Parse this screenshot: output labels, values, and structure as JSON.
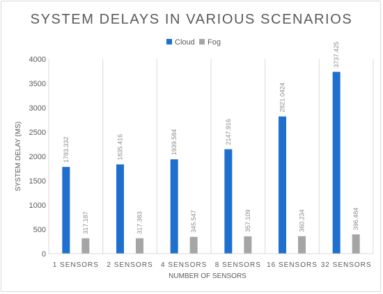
{
  "chart_data": {
    "type": "bar",
    "title": "SYSTEM DELAYS IN VARIOUS SCENARIOS",
    "xlabel": "NUMBER OF SENSORS",
    "ylabel": "SYSTEM DELAY (MS)",
    "categories": [
      "1 SENSORS",
      "2 SENSORS",
      "4 SENSORS",
      "8 SENSORS",
      "16 SENSORS",
      "32 SENSORS"
    ],
    "series": [
      {
        "name": "Cloud",
        "color": "#1f6fce",
        "values": [
          1783.332,
          1835.416,
          1939.584,
          2147.916,
          2821.0424,
          3737.425
        ],
        "labels": [
          "1783.332",
          "1835.416",
          "1939.584",
          "2147.916",
          "2821.0424",
          "3737.425"
        ]
      },
      {
        "name": "Fog",
        "color": "#a5a5a5",
        "values": [
          317.187,
          317.383,
          345.547,
          357.109,
          360.234,
          396.484
        ],
        "labels": [
          "317.187",
          "317.383",
          "345.547",
          "357.109",
          "360.234",
          "396.484"
        ]
      }
    ],
    "ylim": [
      0,
      4000
    ],
    "yticks": [
      0,
      500,
      1000,
      1500,
      2000,
      2500,
      3000,
      3500,
      4000
    ],
    "legend": "top",
    "grid": "vertical category separators"
  }
}
